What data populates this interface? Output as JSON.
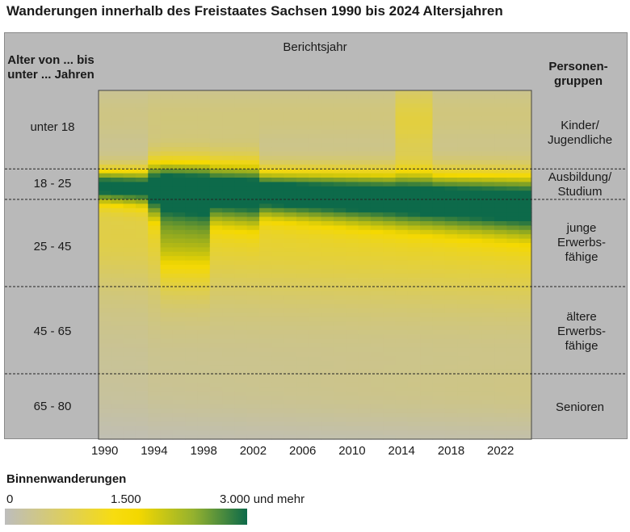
{
  "chart_data": {
    "type": "heatmap",
    "title": "Wanderungen innerhalb  des Freistaates Sachsen 1990 bis 2024 Altersjahren",
    "xlabel": "Berichtsjahr",
    "ylabel": "Alter von ... bis unter ... Jahren",
    "right_label": "Personen-gruppen",
    "x": {
      "start": 1990,
      "end": 2024
    },
    "x_ticks": [
      "1990",
      "1994",
      "1998",
      "2002",
      "2006",
      "2010",
      "2014",
      "2018",
      "2022"
    ],
    "y_range": [
      0,
      80
    ],
    "age_groups": [
      {
        "label": "unter 18",
        "from": 0,
        "to": 18,
        "group": "Kinder/ Jugendliche"
      },
      {
        "label": "18 - 25",
        "from": 18,
        "to": 25,
        "group": "Ausbildung/ Studium"
      },
      {
        "label": "25 - 45",
        "from": 25,
        "to": 45,
        "group": "junge Erwerbs- fähige"
      },
      {
        "label": "45 - 65",
        "from": 45,
        "to": 65,
        "group": "ältere Erwerbs- fähige"
      },
      {
        "label": "65 - 80",
        "from": 65,
        "to": 80,
        "group": "Senioren"
      }
    ],
    "colorscale": {
      "title": "Binnenwanderungen",
      "min": 0,
      "mid": 1500,
      "max": 3000,
      "min_label": "0",
      "mid_label": "1.500",
      "max_label": "3.000 und mehr",
      "colors": [
        "#bdbdbd",
        "#f5d900",
        "#0d6a4a"
      ]
    }
  }
}
